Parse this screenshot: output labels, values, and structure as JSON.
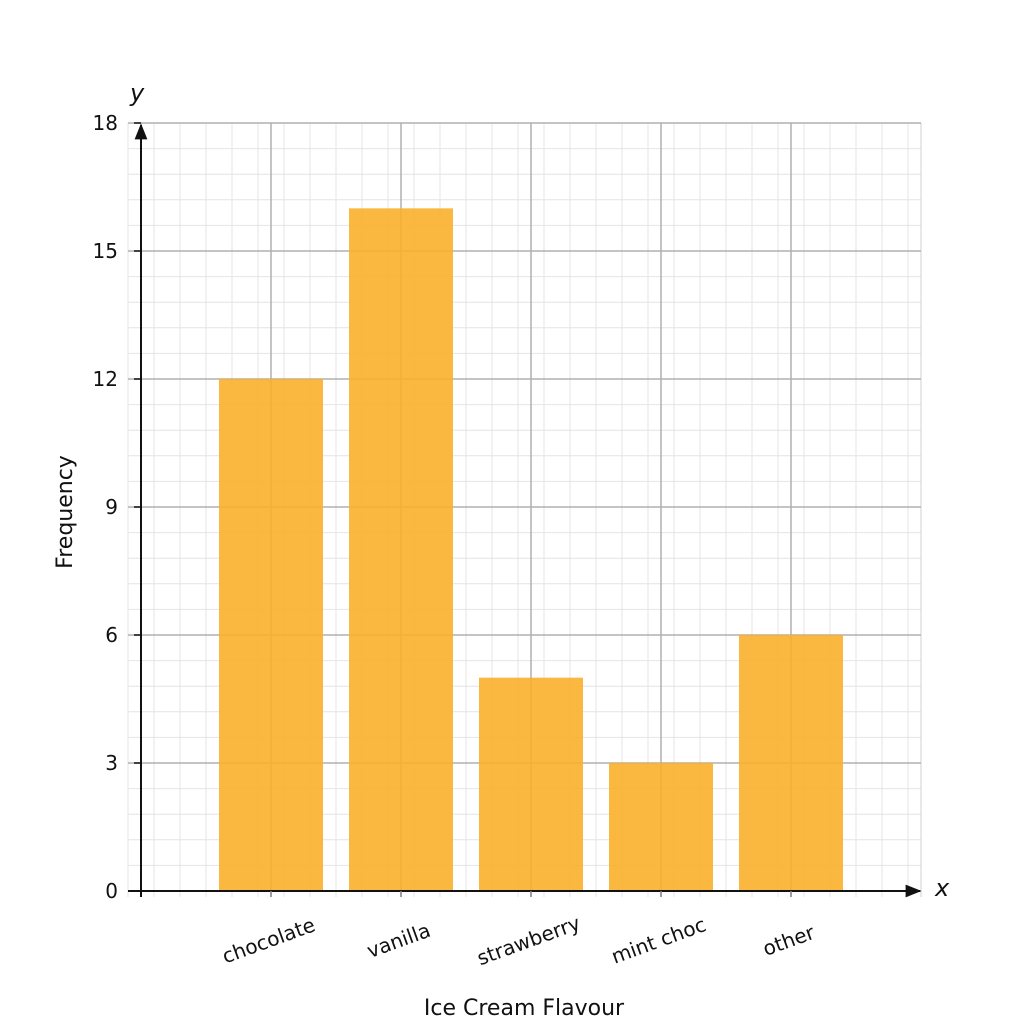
{
  "chart_data": {
    "type": "bar",
    "title": "",
    "xlabel": "Ice Cream Flavour",
    "ylabel": "Frequency",
    "x_axis_var": "x",
    "y_axis_var": "y",
    "categories": [
      "chocolate",
      "vanilla",
      "strawberry",
      "mint choc",
      "other"
    ],
    "values": [
      12,
      16,
      5,
      3,
      6
    ],
    "ylim": [
      0,
      18
    ],
    "yticks": [
      0,
      3,
      6,
      9,
      12,
      15,
      18
    ],
    "grid": true,
    "bar_color": "#FBB02B"
  }
}
